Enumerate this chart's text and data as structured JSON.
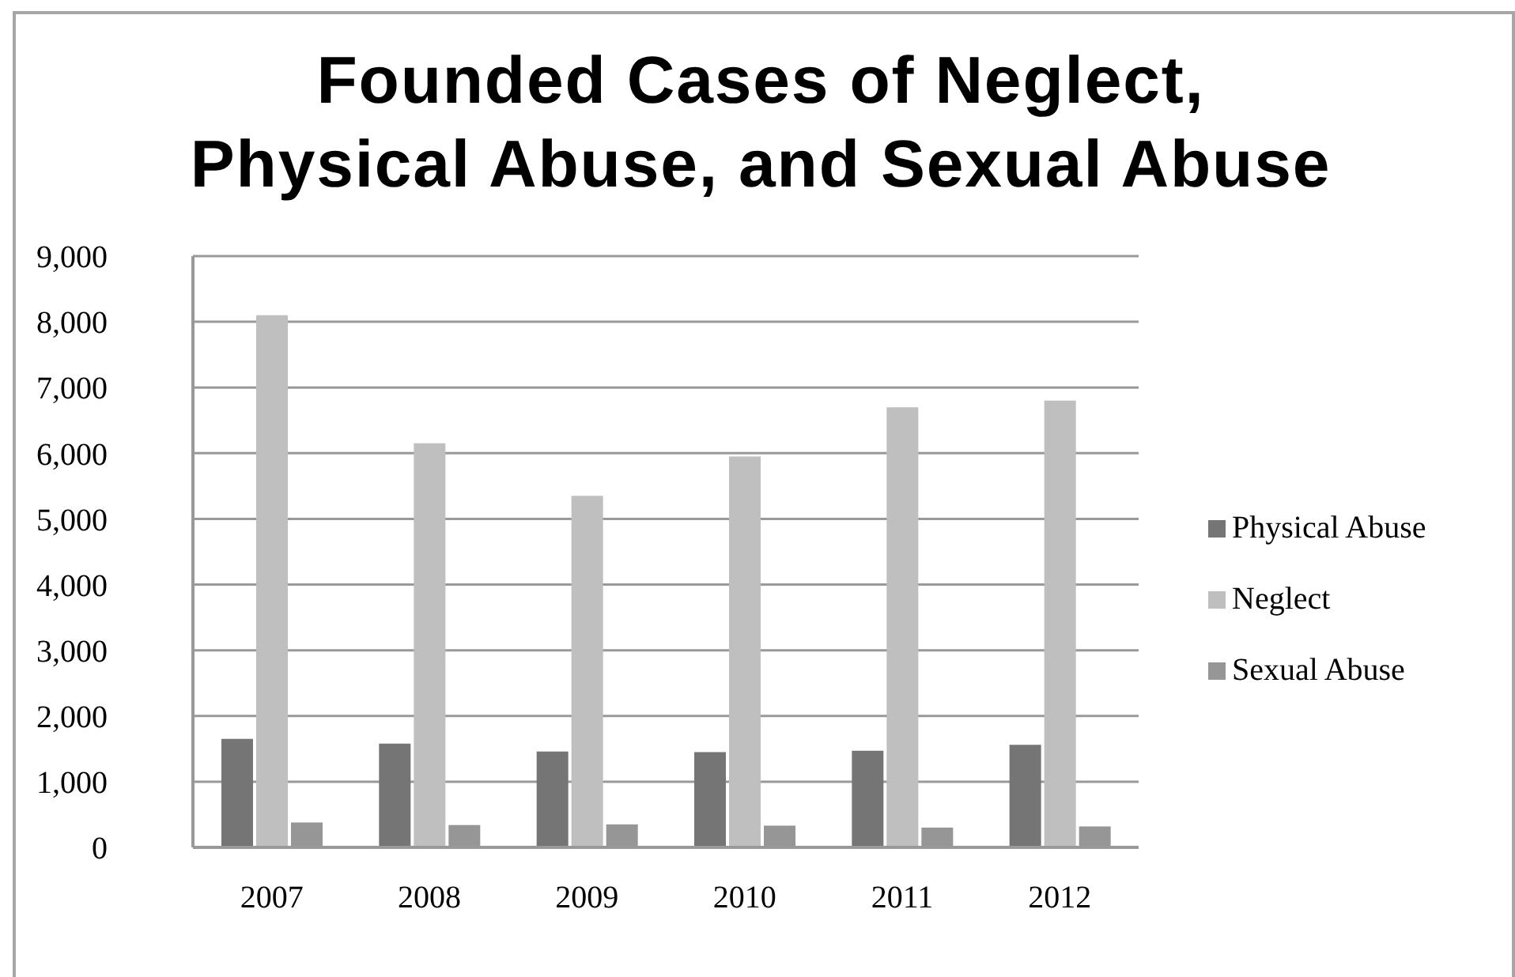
{
  "chart_data": {
    "type": "bar",
    "title": "Founded Cases of Neglect,\nPhysical Abuse, and Sexual Abuse",
    "categories": [
      "2007",
      "2008",
      "2009",
      "2010",
      "2011",
      "2012"
    ],
    "series": [
      {
        "name": "Physical Abuse",
        "color": "#757575",
        "values": [
          1650,
          1580,
          1460,
          1450,
          1470,
          1560
        ]
      },
      {
        "name": "Neglect",
        "color": "#bfbfbf",
        "values": [
          8100,
          6150,
          5350,
          5950,
          6700,
          6800
        ]
      },
      {
        "name": "Sexual Abuse",
        "color": "#969696",
        "values": [
          380,
          340,
          350,
          330,
          300,
          320
        ]
      }
    ],
    "ylim": [
      0,
      9000
    ],
    "yticks": [
      0,
      {
        "value": 1000,
        "label": "1,000"
      },
      {
        "value": 2000,
        "label": "2,000"
      },
      {
        "value": 3000,
        "label": "3,000"
      },
      {
        "value": 4000,
        "label": "4,000"
      },
      {
        "value": 5000,
        "label": "5,000"
      },
      {
        "value": 6000,
        "label": "6,000"
      },
      {
        "value": 7000,
        "label": "7,000"
      },
      {
        "value": 8000,
        "label": "8,000"
      },
      {
        "value": 9000,
        "label": "9,000"
      }
    ],
    "grid": "y",
    "legend": "right"
  }
}
